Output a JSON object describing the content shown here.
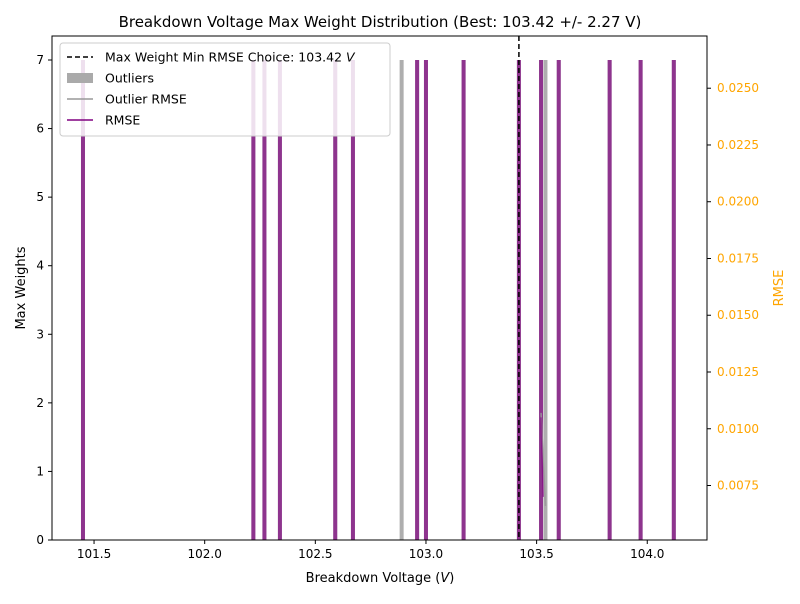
{
  "chart_data": {
    "type": "bar",
    "title": "Breakdown Voltage Max Weight Distribution (Best: 103.42 +/- 2.27 V)",
    "xlabel_main": "Breakdown Voltage (",
    "xlabel_unit": "V",
    "xlabel_tail": ")",
    "ylabel": "Max Weights",
    "y2label": "RMSE",
    "xlim": [
      101.31,
      104.27
    ],
    "ylim": [
      0,
      7.35
    ],
    "y2lim": [
      0.0051,
      0.0273
    ],
    "xticks": [
      101.5,
      102.0,
      102.5,
      103.0,
      103.5,
      104.0
    ],
    "xtick_labels": [
      "101.5",
      "102.0",
      "102.5",
      "103.0",
      "103.5",
      "104.0"
    ],
    "yticks": [
      0,
      1,
      2,
      3,
      4,
      5,
      6,
      7
    ],
    "ytick_labels": [
      "0",
      "1",
      "2",
      "3",
      "4",
      "5",
      "6",
      "7"
    ],
    "y2ticks": [
      0.0075,
      0.01,
      0.0125,
      0.015,
      0.0175,
      0.02,
      0.0225,
      0.025
    ],
    "y2tick_labels": [
      "0.0075",
      "0.0100",
      "0.0125",
      "0.0150",
      "0.0175",
      "0.0200",
      "0.0225",
      "0.0250"
    ],
    "best_x": 103.42,
    "grid": false,
    "legend_position": "top-left",
    "legend": [
      {
        "label": "Max Weight Min RMSE Choice: 103.42 ",
        "label_italic": "V",
        "style": "dashed",
        "color": "#000000"
      },
      {
        "label": "Outliers",
        "style": "patch",
        "color": "#aaaaaa"
      },
      {
        "label": "Outlier RMSE",
        "style": "line",
        "color": "#999999"
      },
      {
        "label": "RMSE",
        "style": "line",
        "color": "#800080"
      }
    ],
    "series": [
      {
        "name": "Outliers",
        "color": "#aaaaaa",
        "x": [
          101.45,
          102.22,
          102.27,
          102.34,
          102.59,
          102.67,
          102.89,
          102.96,
          103.0,
          103.17,
          103.42,
          103.52,
          103.54,
          103.6,
          103.83,
          103.97,
          104.12
        ],
        "values": [
          7,
          7,
          7,
          7,
          7,
          7,
          7,
          7,
          7,
          7,
          7,
          7,
          7,
          7,
          7,
          7,
          7
        ]
      },
      {
        "name": "",
        "color": "#800080",
        "x": [
          101.45,
          102.22,
          102.27,
          102.34,
          102.59,
          102.67,
          102.96,
          103.0,
          103.17,
          103.42,
          103.52,
          103.6,
          103.83,
          103.97,
          104.12
        ],
        "values": [
          7,
          7,
          7,
          7,
          7,
          7,
          7,
          7,
          7,
          7,
          7,
          7,
          7,
          7,
          7
        ]
      },
      {
        "name": "Outlier RMSE",
        "color": "#999999",
        "x": [
          103.52,
          103.54
        ],
        "values": [
          0.0107,
          0.0066
        ]
      },
      {
        "name": "RMSE",
        "color": "#800080",
        "x": [
          103.52,
          103.53
        ],
        "values": [
          0.0105,
          0.007
        ]
      }
    ],
    "accent_color": "#ffa500"
  }
}
